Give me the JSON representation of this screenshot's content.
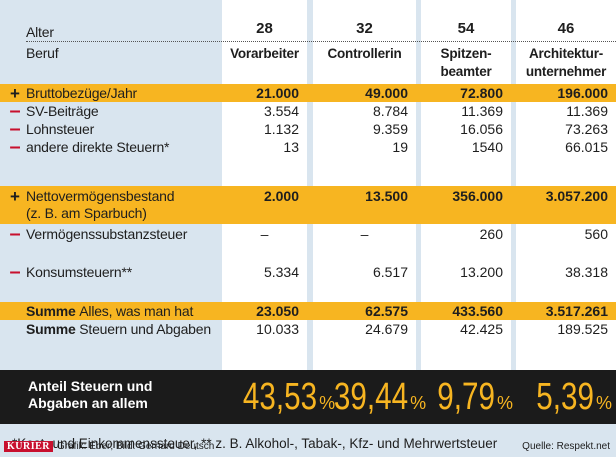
{
  "header": {
    "alter_label": "Alter",
    "beruf_label": "Beruf",
    "ages": [
      "28",
      "32",
      "54",
      "46"
    ],
    "jobs": [
      [
        "Vorarbeiter",
        ""
      ],
      [
        "Controllerin",
        ""
      ],
      [
        "Spitzen-",
        "beamter"
      ],
      [
        "Architektur-",
        "unternehmer"
      ]
    ]
  },
  "rows": {
    "brutto": {
      "sign": "+",
      "label": "Bruttobezüge/Jahr",
      "values": [
        "21.000",
        "49.000",
        "72.800",
        "196.000"
      ]
    },
    "sv": {
      "sign": "–",
      "label": "SV-Beiträge",
      "values": [
        "3.554",
        "8.784",
        "11.369",
        "11.369"
      ]
    },
    "lohn": {
      "sign": "–",
      "label": "Lohnsteuer",
      "values": [
        "1.132",
        "9.359",
        "16.056",
        "73.263"
      ]
    },
    "andere": {
      "sign": "–",
      "label": "andere direkte Steuern*",
      "values": [
        "13",
        "19",
        "1540",
        "66.015"
      ]
    },
    "netto": {
      "sign": "+",
      "label": "Nettovermögensbestand",
      "label2": "(z. B. am Sparbuch)",
      "values": [
        "2.000",
        "13.500",
        "356.000",
        "3.057.200"
      ]
    },
    "vermoegen": {
      "sign": "–",
      "label": "Vermögenssubstanzsteuer",
      "values": [
        "–",
        "–",
        "260",
        "560"
      ]
    },
    "konsum": {
      "sign": "–",
      "label": "Konsumsteuern**",
      "values": [
        "5.334",
        "6.517",
        "13.200",
        "38.318"
      ]
    },
    "summe_alles": {
      "label_bold": "Summe",
      "label": "Alles, was man hat",
      "values": [
        "23.050",
        "62.575",
        "433.560",
        "3.517.261"
      ]
    },
    "summe_steuern": {
      "label_bold": "Summe",
      "label": "Steuern und Abgaben",
      "values": [
        "10.033",
        "24.679",
        "42.425",
        "189.525"
      ]
    }
  },
  "anteil": {
    "label1": "Anteil Steuern und",
    "label2": "Abgaben an allem",
    "values": [
      "43,53",
      "39,44",
      "9,79",
      "5,39"
    ],
    "unit": "%"
  },
  "footnote": "*Kest- und Einkommenssteuer, ** z. B. Alkohol-, Tabak-, Kfz- und Mehrwertsteuer",
  "credits": {
    "brand": "KURIER",
    "text": "Grafik: Eber; Bild: Gerhard Deutsch",
    "source": "Quelle: Respekt.net"
  },
  "colors": {
    "accent": "#f7b521",
    "minus": "#c8102e",
    "background": "#d9e5ef",
    "dark": "#1b1b1b"
  }
}
